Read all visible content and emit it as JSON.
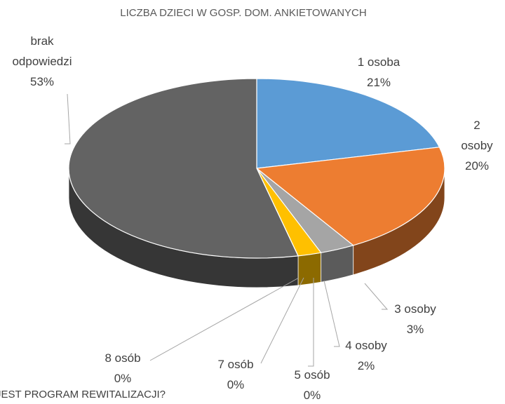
{
  "chart_data": {
    "type": "pie3d",
    "title": "LICZBA DZIECI W GOSP. DOM. ANKIETOWANYCH",
    "categories": [
      "1 osoba",
      "2 osoby",
      "3 osoby",
      "4 osoby",
      "5 osób",
      "7 osób",
      "8 osób",
      "brak odpowiedzi"
    ],
    "values": [
      21,
      20,
      3,
      2,
      0,
      0,
      0,
      53
    ],
    "value_labels": [
      "21%",
      "20%",
      "3%",
      "2%",
      "0%",
      "0%",
      "0%",
      "53%"
    ],
    "colors": [
      "#5b9bd5",
      "#ed7d31",
      "#a5a5a5",
      "#ffc000",
      "#4472c4",
      "#70ad47",
      "#264478",
      "#636363"
    ],
    "annotations": [
      "JEST PROGRAM REWITALIZACJI?"
    ]
  }
}
